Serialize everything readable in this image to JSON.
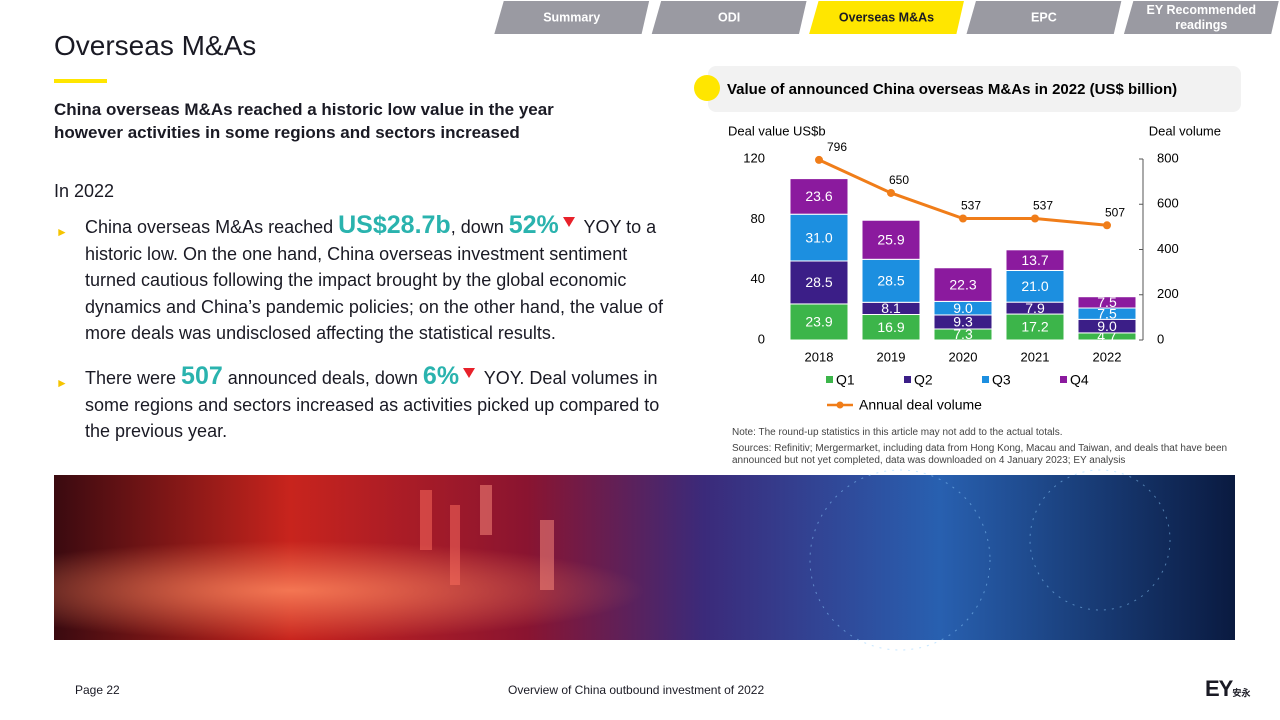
{
  "tabs": [
    "Summary",
    "ODI",
    "Overseas M&As",
    "EPC",
    "EY Recommended readings"
  ],
  "active_tab": 2,
  "header": {
    "title": "Overseas M&As",
    "subtitle": "China overseas M&As reached a historic low value in the year however activities in some regions and sectors increased"
  },
  "body": {
    "intro": "In 2022",
    "bullets": [
      [
        "China overseas M&As reached ",
        "US$28.7b",
        ", down ",
        "52%",
        " YOY to a historic low. On the one hand, China overseas investment sentiment turned cautious following the impact brought by the global economic dynamics and China’s pandemic policies; on the other hand, the value of more deals was undisclosed affecting the statistical results."
      ],
      [
        "There were ",
        "507",
        " announced deals, down ",
        "6%",
        " YOY. Deal volumes in some regions and sectors increased as activities picked up compared to the previous year."
      ]
    ]
  },
  "chart_data": {
    "type": "bar",
    "stacked": true,
    "title": "Value of announced China overseas M&As in 2022 (US$ billion)",
    "y_label": "Deal value US$b",
    "y2_label": "Deal volume",
    "categories": [
      "2018",
      "2019",
      "2020",
      "2021",
      "2022"
    ],
    "series": [
      {
        "name": "Q1",
        "color": "#3cb54a",
        "values": [
          23.9,
          16.9,
          7.3,
          17.2,
          4.7
        ],
        "value_labels": [
          "23.9",
          "16.9",
          "7.3",
          "17.2",
          "4.7"
        ]
      },
      {
        "name": "Q2",
        "color": "#3b1e87",
        "values": [
          28.5,
          8.1,
          9.3,
          7.9,
          9.0
        ],
        "value_labels": [
          "28.5",
          "8.1",
          "9.3",
          "7.9",
          "9.0"
        ]
      },
      {
        "name": "Q3",
        "color": "#1c8fe0",
        "values": [
          31.0,
          28.5,
          9.0,
          21.0,
          7.5
        ],
        "value_labels": [
          "31.0",
          "28.5",
          "9.0",
          "21.0",
          "7.5"
        ]
      },
      {
        "name": "Q4",
        "color": "#8b1a9e",
        "values": [
          23.6,
          25.9,
          22.3,
          13.7,
          7.5
        ],
        "value_labels": [
          "23.6",
          "25.9",
          "22.3",
          "13.7",
          "7.5"
        ]
      },
      {
        "name": "Annual deal volume",
        "color": "#f07d19",
        "type": "line",
        "axis": "y2",
        "values": [
          796,
          650,
          537,
          537,
          507
        ]
      }
    ],
    "ylim": [
      0,
      120
    ],
    "yticks": [
      0,
      40,
      80,
      120
    ],
    "y2lim": [
      0,
      800
    ],
    "y2ticks": [
      0,
      200,
      400,
      600,
      800
    ],
    "notes": [
      "Note: The round-up statistics in this article may not add to the actual totals.",
      "Sources: Refinitiv; Mergermarket, including data from Hong Kong, Macau and Taiwan, and deals that have been announced but not yet completed, data was downloaded on 4 January 2023; EY analysis"
    ]
  },
  "footer": {
    "page": "Page 22",
    "doc_title": "Overview of China outbound investment of 2022",
    "logo": "EY",
    "logo_cn": "安永"
  }
}
